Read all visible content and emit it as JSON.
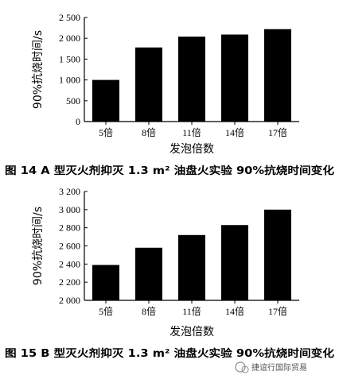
{
  "chart_data": [
    {
      "type": "bar",
      "categories": [
        "5倍",
        "8倍",
        "11倍",
        "14倍",
        "17倍"
      ],
      "values": [
        1000,
        1780,
        2040,
        2090,
        2220
      ],
      "xlabel": "发泡倍数",
      "ylabel": "90%抗烧时间/s",
      "ylim": [
        0,
        2500
      ],
      "yticks": [
        "0",
        "500",
        "1 000",
        "1 500",
        "2 000",
        "2 500"
      ],
      "caption": "图 14   A 型灭火剂抑灭 1.3 m² 油盘火实验 90%抗烧时间变化",
      "grid": false,
      "bar_color": "#000000"
    },
    {
      "type": "bar",
      "categories": [
        "5倍",
        "8倍",
        "11倍",
        "14倍",
        "17倍"
      ],
      "values": [
        2390,
        2580,
        2720,
        2830,
        3000
      ],
      "xlabel": "发泡倍数",
      "ylabel": "90%抗烧时间/s",
      "ylim": [
        2000,
        3200
      ],
      "yticks": [
        "2 000",
        "2 200",
        "2 400",
        "2 600",
        "2 800",
        "3 000",
        "3 200"
      ],
      "caption": "图 15   B 型灭火剂抑灭 1.3 m² 油盘火实验 90%抗烧时间变化",
      "grid": false,
      "bar_color": "#000000"
    }
  ],
  "watermark": {
    "text": "捷谊行国际贸易"
  }
}
